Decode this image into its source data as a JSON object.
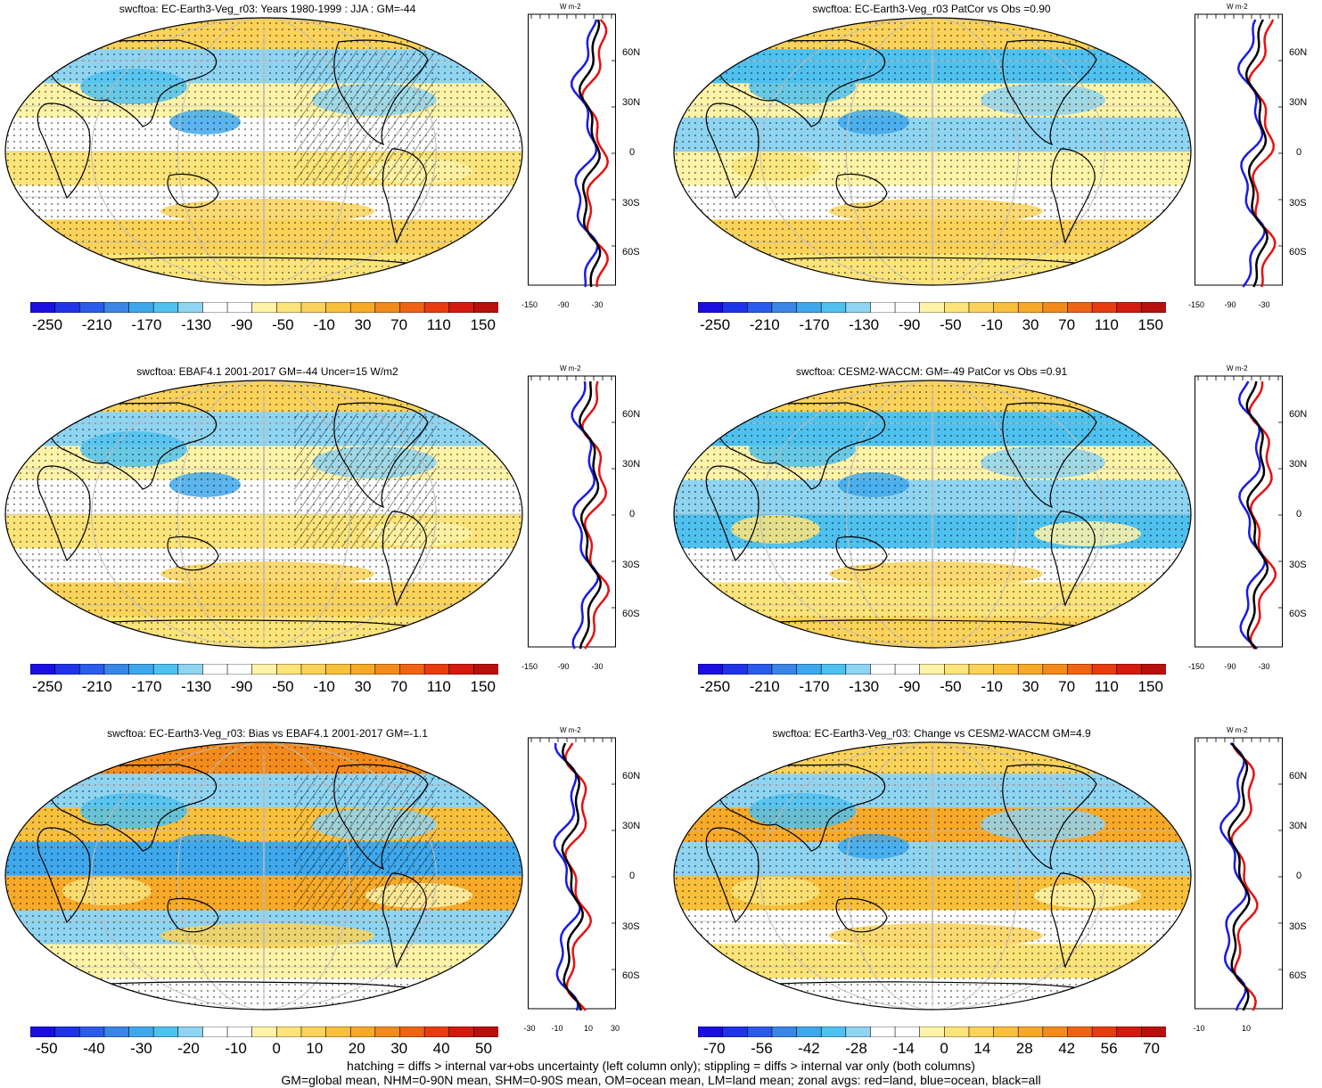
{
  "footer": {
    "line1": "hatching = diffs > internal var+obs uncertainty (left column only); stippling = diffs > internal var only (both columns)",
    "line2": "GM=global mean, NHM=0-90N mean, SHM=0-90S mean, OM=ocean mean, LM=land mean; zonal avgs: red=land, blue=ocean, black=all"
  },
  "panels": [
    {
      "title": "swcftoa: EC-Earth3-Veg_r03: Years 1980-1999 : JJA : GM=-44",
      "cbar": [
        "-250",
        "-210",
        "-170",
        "-130",
        "-90",
        "-50",
        "-10",
        "30",
        "70",
        "110",
        "150"
      ],
      "xticks": [
        "-150",
        "-90",
        "-30"
      ],
      "lat_labels": [
        "60N",
        "30N",
        "0",
        "30S",
        "60S"
      ],
      "unit": "W m-2"
    },
    {
      "title": "swcftoa: EC-Earth3-Veg_r03 PatCor vs Obs =0.90",
      "cbar": [
        "-250",
        "-210",
        "-170",
        "-130",
        "-90",
        "-50",
        "-10",
        "30",
        "70",
        "110",
        "150"
      ],
      "xticks": [
        "-150",
        "-90",
        "-30"
      ],
      "lat_labels": [
        "60N",
        "30N",
        "0",
        "30S",
        "60S"
      ],
      "unit": "W m-2"
    },
    {
      "title": "swcftoa: EBAF4.1 2001-2017 GM=-44 Uncer=15 W/m2",
      "cbar": [
        "-250",
        "-210",
        "-170",
        "-130",
        "-90",
        "-50",
        "-10",
        "30",
        "70",
        "110",
        "150"
      ],
      "xticks": [
        "-150",
        "-90",
        "-30"
      ],
      "lat_labels": [
        "60N",
        "30N",
        "0",
        "30S",
        "60S"
      ],
      "unit": "W m-2"
    },
    {
      "title": "swcftoa: CESM2-WACCM: GM=-49 PatCor vs Obs =0.91",
      "cbar": [
        "-250",
        "-210",
        "-170",
        "-130",
        "-90",
        "-50",
        "-10",
        "30",
        "70",
        "110",
        "150"
      ],
      "xticks": [
        "-150",
        "-90",
        "-30"
      ],
      "lat_labels": [
        "60N",
        "30N",
        "0",
        "30S",
        "60S"
      ],
      "unit": "W m-2"
    },
    {
      "title": "swcftoa: EC-Earth3-Veg_r03: Bias vs EBAF4.1 2001-2017 GM=-1.1",
      "cbar": [
        "-50",
        "-40",
        "-30",
        "-20",
        "-10",
        "0",
        "10",
        "20",
        "30",
        "40",
        "50"
      ],
      "xticks": [
        "-30",
        "-10",
        "10",
        "30"
      ],
      "lat_labels": [
        "60N",
        "30N",
        "0",
        "30S",
        "60S"
      ],
      "unit": "W m-2"
    },
    {
      "title": "swcftoa: EC-Earth3-Veg_r03: Change vs CESM2-WACCM GM=4.9",
      "cbar": [
        "-70",
        "-56",
        "-42",
        "-28",
        "-14",
        "0",
        "14",
        "28",
        "42",
        "56",
        "70"
      ],
      "xticks": [
        "-10",
        "10"
      ],
      "lat_labels": [
        "60N",
        "30N",
        "0",
        "30S",
        "60S"
      ],
      "unit": "W m-2"
    }
  ],
  "colors": {
    "scale": [
      "#1a0fe0",
      "#1f34e8",
      "#2b5bea",
      "#3a86e6",
      "#3fa8ec",
      "#4fc1ef",
      "#8fd4f1",
      "#ffffff",
      "#ffffff",
      "#fff3a8",
      "#fde47a",
      "#fbd25a",
      "#f9c03c",
      "#f7a928",
      "#f38b1c",
      "#ee6414",
      "#e83c10",
      "#d41a0e",
      "#b8100c"
    ],
    "zonal_land": "#e81010",
    "zonal_ocean": "#1a1ae8",
    "zonal_all": "#000000"
  }
}
